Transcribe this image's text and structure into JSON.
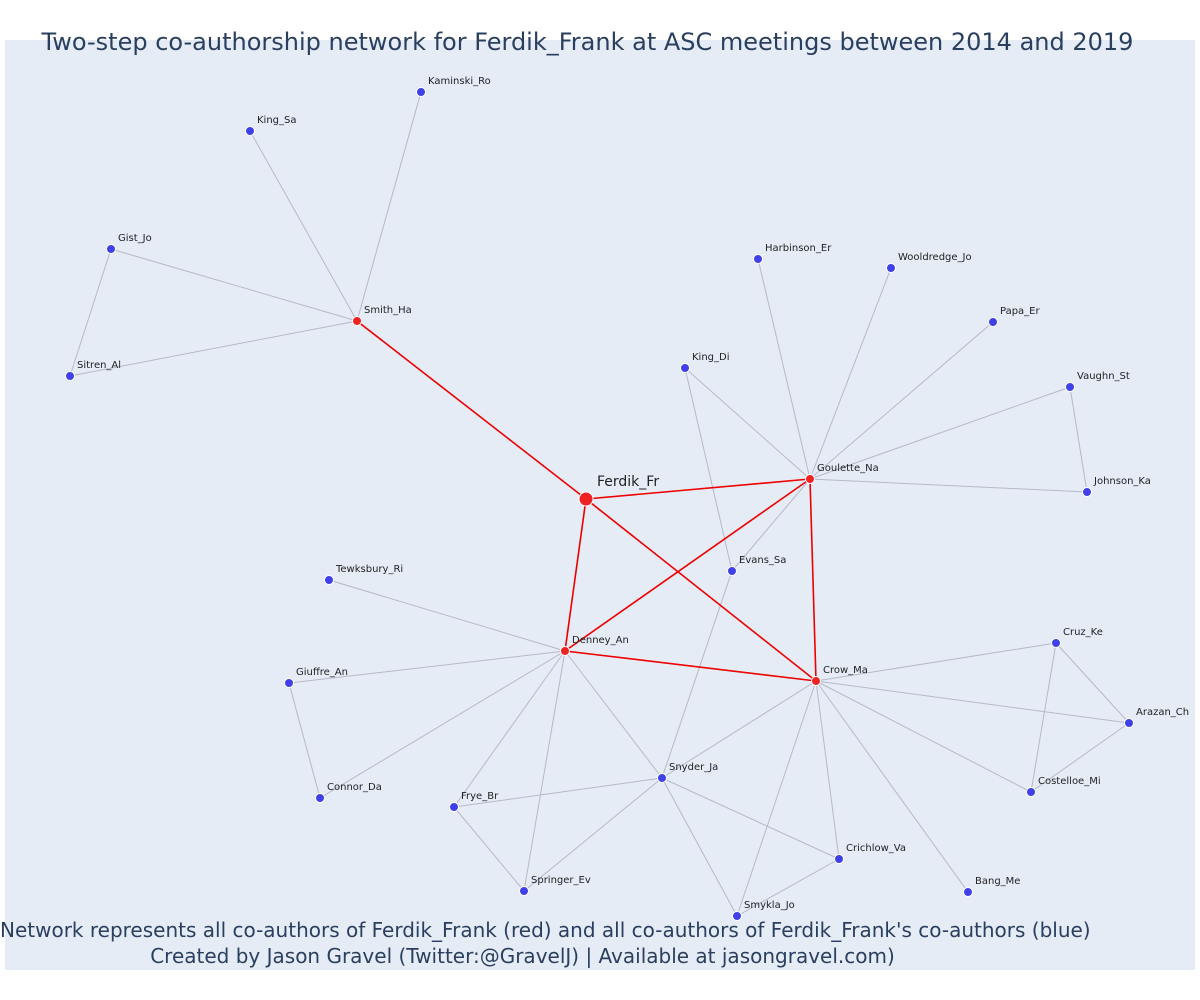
{
  "title": "Two-step co-authorship network for Ferdik_Frank at ASC meetings between 2014 and 2019",
  "footer": {
    "line1": "Network represents all co-authors of Ferdik_Frank (red) and all co-authors of Ferdik_Frank's co-authors (blue)",
    "line2": "Created by Jason Gravel (Twitter:@GravelJ) | Available at jasongravel.com)"
  },
  "colors": {
    "focal": "#ee2222",
    "first_step": "#ee2222",
    "second_step": "#4040e8",
    "red_edge": "#ee0000",
    "grey_edge": "#b8b8c8",
    "background": "#e5ecf6"
  },
  "nodes": [
    {
      "id": "Ferdik_Fr",
      "group": "focal"
    },
    {
      "id": "Smith_Ha",
      "group": "first"
    },
    {
      "id": "Goulette_Na",
      "group": "first"
    },
    {
      "id": "Denney_An",
      "group": "first"
    },
    {
      "id": "Crow_Ma",
      "group": "first"
    },
    {
      "id": "Kaminski_Ro",
      "group": "second"
    },
    {
      "id": "King_Sa",
      "group": "second"
    },
    {
      "id": "Gist_Jo",
      "group": "second"
    },
    {
      "id": "Sitren_Al",
      "group": "second"
    },
    {
      "id": "Harbinson_Er",
      "group": "second"
    },
    {
      "id": "Wooldredge_Jo",
      "group": "second"
    },
    {
      "id": "Papa_Er",
      "group": "second"
    },
    {
      "id": "King_Di",
      "group": "second"
    },
    {
      "id": "Vaughn_St",
      "group": "second"
    },
    {
      "id": "Johnson_Ka",
      "group": "second"
    },
    {
      "id": "Evans_Sa",
      "group": "second"
    },
    {
      "id": "Tewksbury_Ri",
      "group": "second"
    },
    {
      "id": "Giuffre_An",
      "group": "second"
    },
    {
      "id": "Connor_Da",
      "group": "second"
    },
    {
      "id": "Cruz_Ke",
      "group": "second"
    },
    {
      "id": "Arazan_Ch",
      "group": "second"
    },
    {
      "id": "Costelloe_Mi",
      "group": "second"
    },
    {
      "id": "Snyder_Ja",
      "group": "second"
    },
    {
      "id": "Frye_Br",
      "group": "second"
    },
    {
      "id": "Crichlow_Va",
      "group": "second"
    },
    {
      "id": "Springer_Ev",
      "group": "second"
    },
    {
      "id": "Bang_Me",
      "group": "second"
    },
    {
      "id": "Smykla_Jo",
      "group": "second"
    }
  ],
  "edges": [
    [
      "Ferdik_Fr",
      "Smith_Ha"
    ],
    [
      "Ferdik_Fr",
      "Goulette_Na"
    ],
    [
      "Ferdik_Fr",
      "Denney_An"
    ],
    [
      "Ferdik_Fr",
      "Crow_Ma"
    ],
    [
      "Goulette_Na",
      "Denney_An"
    ],
    [
      "Goulette_Na",
      "Crow_Ma"
    ],
    [
      "Denney_An",
      "Crow_Ma"
    ],
    [
      "Smith_Ha",
      "Kaminski_Ro"
    ],
    [
      "Smith_Ha",
      "King_Sa"
    ],
    [
      "Smith_Ha",
      "Gist_Jo"
    ],
    [
      "Smith_Ha",
      "Sitren_Al"
    ],
    [
      "Gist_Jo",
      "Sitren_Al"
    ],
    [
      "Goulette_Na",
      "Harbinson_Er"
    ],
    [
      "Goulette_Na",
      "Wooldredge_Jo"
    ],
    [
      "Goulette_Na",
      "Papa_Er"
    ],
    [
      "Goulette_Na",
      "King_Di"
    ],
    [
      "Goulette_Na",
      "Vaughn_St"
    ],
    [
      "Goulette_Na",
      "Johnson_Ka"
    ],
    [
      "Goulette_Na",
      "Evans_Sa"
    ],
    [
      "Vaughn_St",
      "Johnson_Ka"
    ],
    [
      "King_Di",
      "Evans_Sa"
    ],
    [
      "Evans_Sa",
      "Snyder_Ja"
    ],
    [
      "Denney_An",
      "Tewksbury_Ri"
    ],
    [
      "Denney_An",
      "Giuffre_An"
    ],
    [
      "Denney_An",
      "Connor_Da"
    ],
    [
      "Giuffre_An",
      "Connor_Da"
    ],
    [
      "Denney_An",
      "Frye_Br"
    ],
    [
      "Denney_An",
      "Springer_Ev"
    ],
    [
      "Denney_An",
      "Snyder_Ja"
    ],
    [
      "Crow_Ma",
      "Cruz_Ke"
    ],
    [
      "Crow_Ma",
      "Arazan_Ch"
    ],
    [
      "Crow_Ma",
      "Costelloe_Mi"
    ],
    [
      "Cruz_Ke",
      "Arazan_Ch"
    ],
    [
      "Cruz_Ke",
      "Costelloe_Mi"
    ],
    [
      "Arazan_Ch",
      "Costelloe_Mi"
    ],
    [
      "Crow_Ma",
      "Snyder_Ja"
    ],
    [
      "Crow_Ma",
      "Crichlow_Va"
    ],
    [
      "Crow_Ma",
      "Bang_Me"
    ],
    [
      "Crow_Ma",
      "Smykla_Jo"
    ],
    [
      "Snyder_Ja",
      "Frye_Br"
    ],
    [
      "Snyder_Ja",
      "Springer_Ev"
    ],
    [
      "Snyder_Ja",
      "Crichlow_Va"
    ],
    [
      "Snyder_Ja",
      "Smykla_Jo"
    ],
    [
      "Frye_Br",
      "Springer_Ev"
    ],
    [
      "Crichlow_Va",
      "Smykla_Jo"
    ]
  ]
}
